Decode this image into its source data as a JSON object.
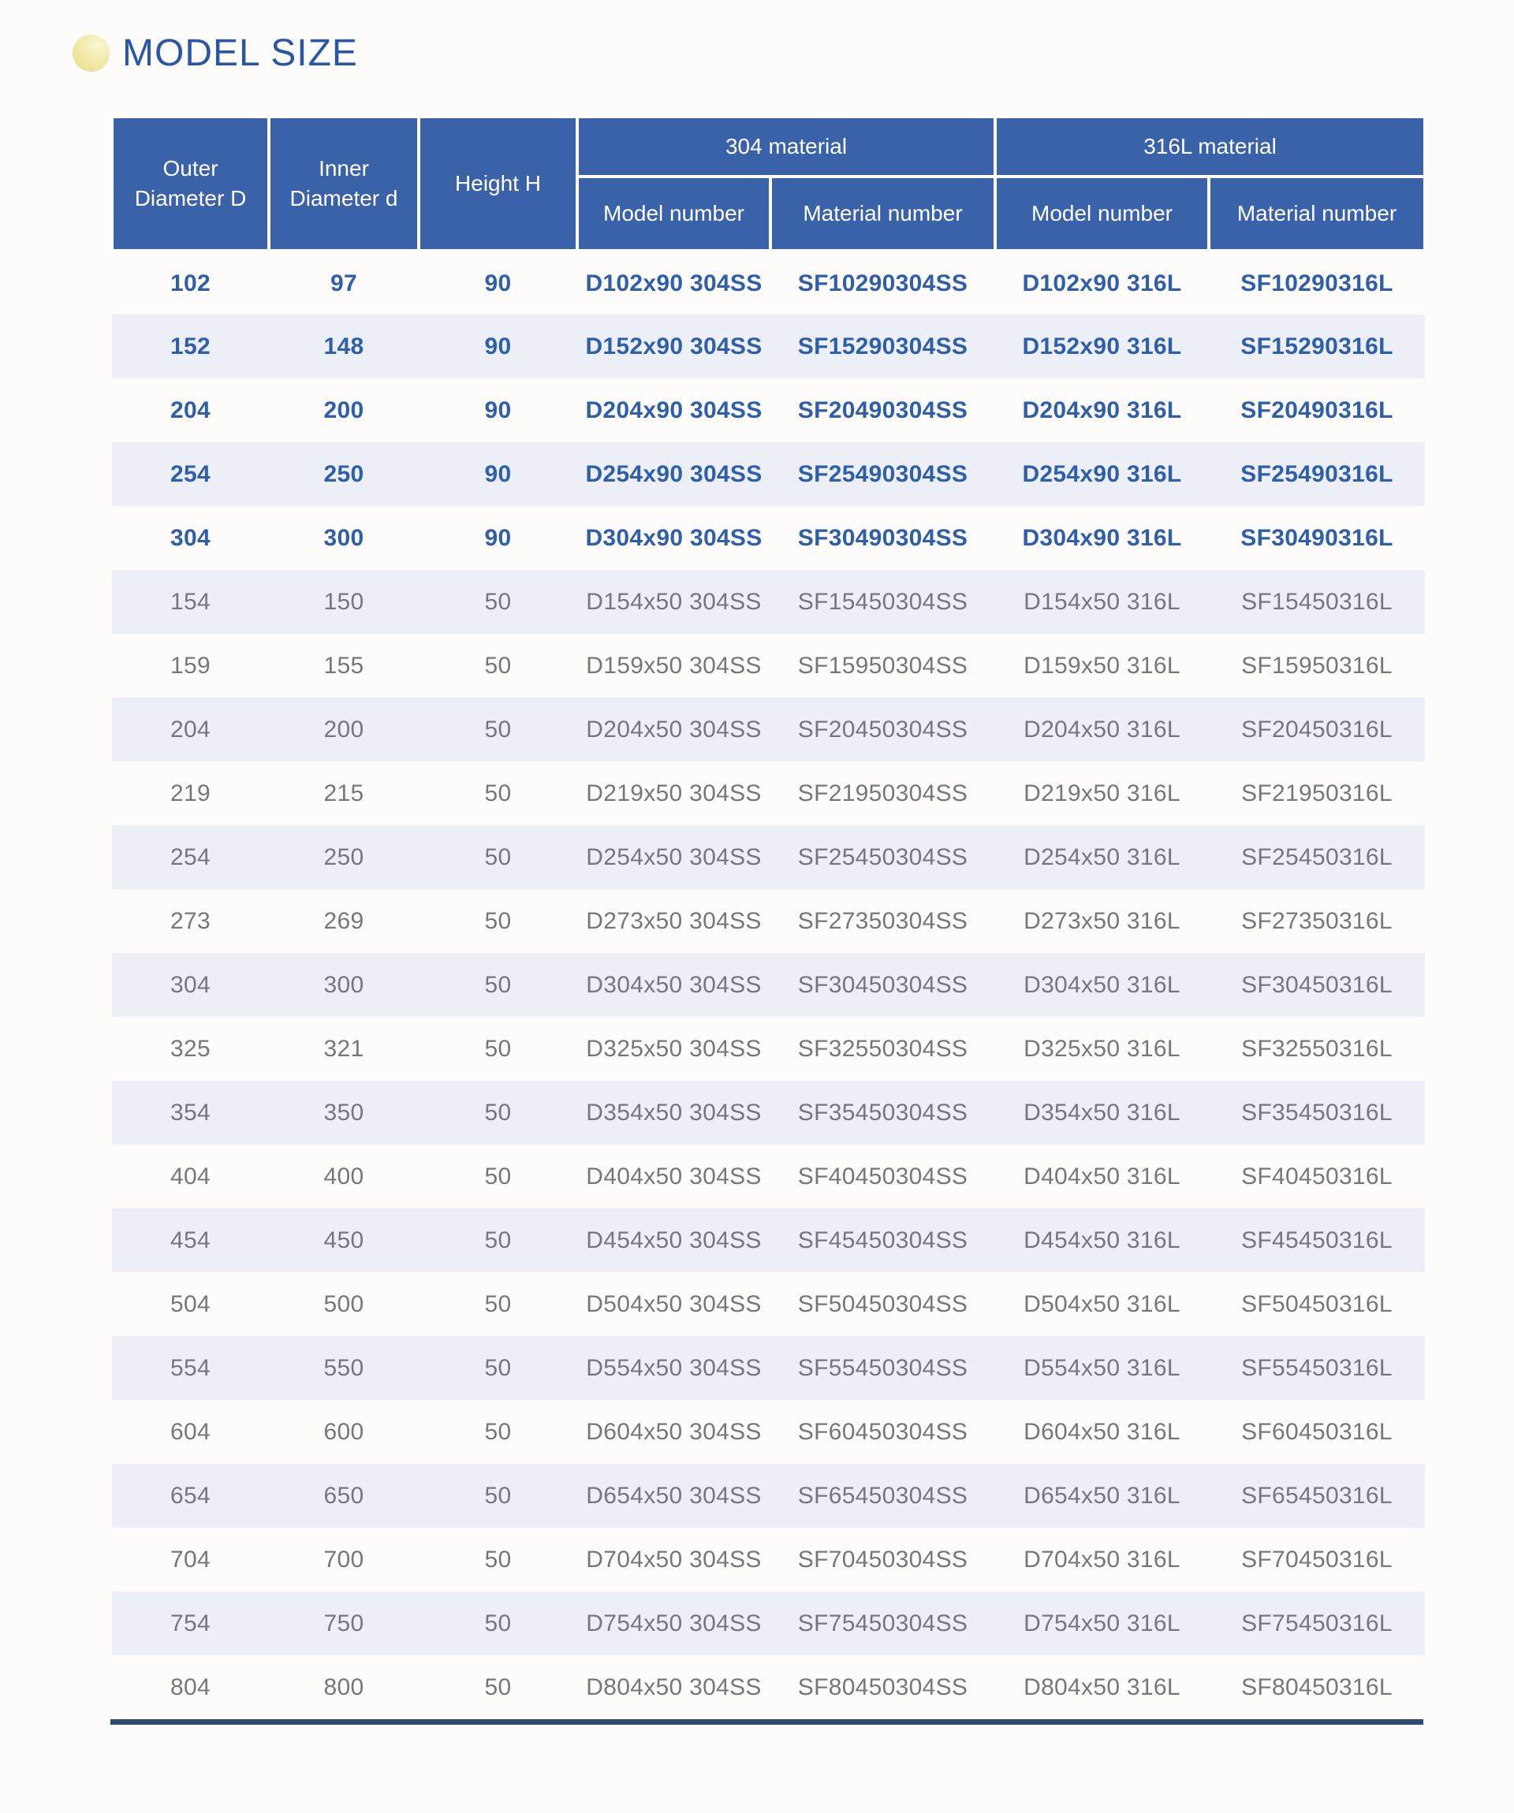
{
  "page": {
    "title": "MODEL SIZE"
  },
  "colors": {
    "header_bg": "#3a62a8",
    "stripe_bg": "#edeff6",
    "highlight_text": "#2f5fa8",
    "body_text": "#75777b",
    "title_text": "#2a57a5",
    "bullet_yellow": "#e9e08b",
    "bottom_rule": "#2c4a73"
  },
  "table": {
    "header": {
      "col_outer": "Outer\nDiameter D",
      "col_inner": "Inner\nDiameter d",
      "col_height": "Height H",
      "group_304": "304 material",
      "group_316": "316L material",
      "sub_model_304": "Model number",
      "sub_material_304": "Material number",
      "sub_model_316": "Model number",
      "sub_material_316": "Material number"
    },
    "rows": [
      {
        "d": "102",
        "dd": "97",
        "h": "90",
        "m304": "D102x90 304SS",
        "n304": "SF10290304SS",
        "m316": "D102x90 316L",
        "n316": "SF10290316L",
        "highlight": true
      },
      {
        "d": "152",
        "dd": "148",
        "h": "90",
        "m304": "D152x90 304SS",
        "n304": "SF15290304SS",
        "m316": "D152x90 316L",
        "n316": "SF15290316L",
        "highlight": true
      },
      {
        "d": "204",
        "dd": "200",
        "h": "90",
        "m304": "D204x90 304SS",
        "n304": "SF20490304SS",
        "m316": "D204x90 316L",
        "n316": "SF20490316L",
        "highlight": true
      },
      {
        "d": "254",
        "dd": "250",
        "h": "90",
        "m304": "D254x90 304SS",
        "n304": "SF25490304SS",
        "m316": "D254x90 316L",
        "n316": "SF25490316L",
        "highlight": true
      },
      {
        "d": "304",
        "dd": "300",
        "h": "90",
        "m304": "D304x90 304SS",
        "n304": "SF30490304SS",
        "m316": "D304x90 316L",
        "n316": "SF30490316L",
        "highlight": true
      },
      {
        "d": "154",
        "dd": "150",
        "h": "50",
        "m304": "D154x50 304SS",
        "n304": "SF15450304SS",
        "m316": "D154x50 316L",
        "n316": "SF15450316L",
        "highlight": false
      },
      {
        "d": "159",
        "dd": "155",
        "h": "50",
        "m304": "D159x50 304SS",
        "n304": "SF15950304SS",
        "m316": "D159x50 316L",
        "n316": "SF15950316L",
        "highlight": false
      },
      {
        "d": "204",
        "dd": "200",
        "h": "50",
        "m304": "D204x50 304SS",
        "n304": "SF20450304SS",
        "m316": "D204x50 316L",
        "n316": "SF20450316L",
        "highlight": false
      },
      {
        "d": "219",
        "dd": "215",
        "h": "50",
        "m304": "D219x50 304SS",
        "n304": "SF21950304SS",
        "m316": "D219x50 316L",
        "n316": "SF21950316L",
        "highlight": false
      },
      {
        "d": "254",
        "dd": "250",
        "h": "50",
        "m304": "D254x50 304SS",
        "n304": "SF25450304SS",
        "m316": "D254x50 316L",
        "n316": "SF25450316L",
        "highlight": false
      },
      {
        "d": "273",
        "dd": "269",
        "h": "50",
        "m304": "D273x50 304SS",
        "n304": "SF27350304SS",
        "m316": "D273x50 316L",
        "n316": "SF27350316L",
        "highlight": false
      },
      {
        "d": "304",
        "dd": "300",
        "h": "50",
        "m304": "D304x50 304SS",
        "n304": "SF30450304SS",
        "m316": "D304x50 316L",
        "n316": "SF30450316L",
        "highlight": false
      },
      {
        "d": "325",
        "dd": "321",
        "h": "50",
        "m304": "D325x50 304SS",
        "n304": "SF32550304SS",
        "m316": "D325x50 316L",
        "n316": "SF32550316L",
        "highlight": false
      },
      {
        "d": "354",
        "dd": "350",
        "h": "50",
        "m304": "D354x50 304SS",
        "n304": "SF35450304SS",
        "m316": "D354x50 316L",
        "n316": "SF35450316L",
        "highlight": false
      },
      {
        "d": "404",
        "dd": "400",
        "h": "50",
        "m304": "D404x50 304SS",
        "n304": "SF40450304SS",
        "m316": "D404x50 316L",
        "n316": "SF40450316L",
        "highlight": false
      },
      {
        "d": "454",
        "dd": "450",
        "h": "50",
        "m304": "D454x50 304SS",
        "n304": "SF45450304SS",
        "m316": "D454x50 316L",
        "n316": "SF45450316L",
        "highlight": false
      },
      {
        "d": "504",
        "dd": "500",
        "h": "50",
        "m304": "D504x50 304SS",
        "n304": "SF50450304SS",
        "m316": "D504x50 316L",
        "n316": "SF50450316L",
        "highlight": false
      },
      {
        "d": "554",
        "dd": "550",
        "h": "50",
        "m304": "D554x50 304SS",
        "n304": "SF55450304SS",
        "m316": "D554x50 316L",
        "n316": "SF55450316L",
        "highlight": false
      },
      {
        "d": "604",
        "dd": "600",
        "h": "50",
        "m304": "D604x50 304SS",
        "n304": "SF60450304SS",
        "m316": "D604x50 316L",
        "n316": "SF60450316L",
        "highlight": false
      },
      {
        "d": "654",
        "dd": "650",
        "h": "50",
        "m304": "D654x50 304SS",
        "n304": "SF65450304SS",
        "m316": "D654x50 316L",
        "n316": "SF65450316L",
        "highlight": false
      },
      {
        "d": "704",
        "dd": "700",
        "h": "50",
        "m304": "D704x50 304SS",
        "n304": "SF70450304SS",
        "m316": "D704x50 316L",
        "n316": "SF70450316L",
        "highlight": false
      },
      {
        "d": "754",
        "dd": "750",
        "h": "50",
        "m304": "D754x50 304SS",
        "n304": "SF75450304SS",
        "m316": "D754x50 316L",
        "n316": "SF75450316L",
        "highlight": false
      },
      {
        "d": "804",
        "dd": "800",
        "h": "50",
        "m304": "D804x50 304SS",
        "n304": "SF80450304SS",
        "m316": "D804x50 316L",
        "n316": "SF80450316L",
        "highlight": false
      }
    ]
  }
}
